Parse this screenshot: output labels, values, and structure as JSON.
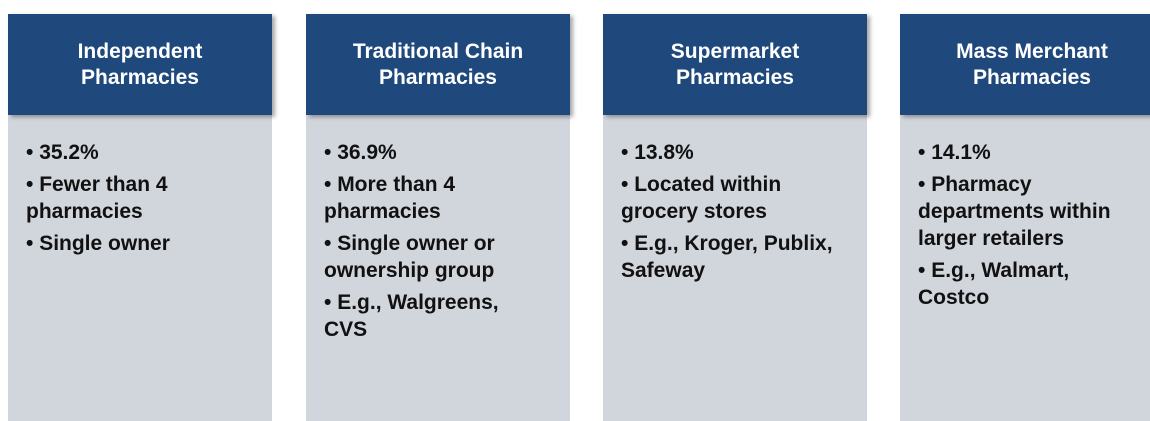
{
  "columns": [
    {
      "title_lines": [
        "Independent",
        "Pharmacies"
      ],
      "bullets": [
        "35.2%",
        "Fewer than 4 pharmacies",
        "Single owner"
      ]
    },
    {
      "title_lines": [
        "Traditional Chain",
        "Pharmacies"
      ],
      "bullets": [
        "36.9%",
        "More than 4 pharmacies",
        "Single owner or ownership group",
        "E.g., Walgreens, CVS"
      ]
    },
    {
      "title_lines": [
        "Supermarket",
        "Pharmacies"
      ],
      "bullets": [
        "13.8%",
        "Located within grocery stores",
        "E.g., Kroger, Publix, Safeway"
      ]
    },
    {
      "title_lines": [
        "Mass Merchant",
        "Pharmacies"
      ],
      "bullets": [
        "14.1%",
        "Pharmacy departments within larger retailers",
        "E.g., Walmart, Costco"
      ]
    }
  ]
}
